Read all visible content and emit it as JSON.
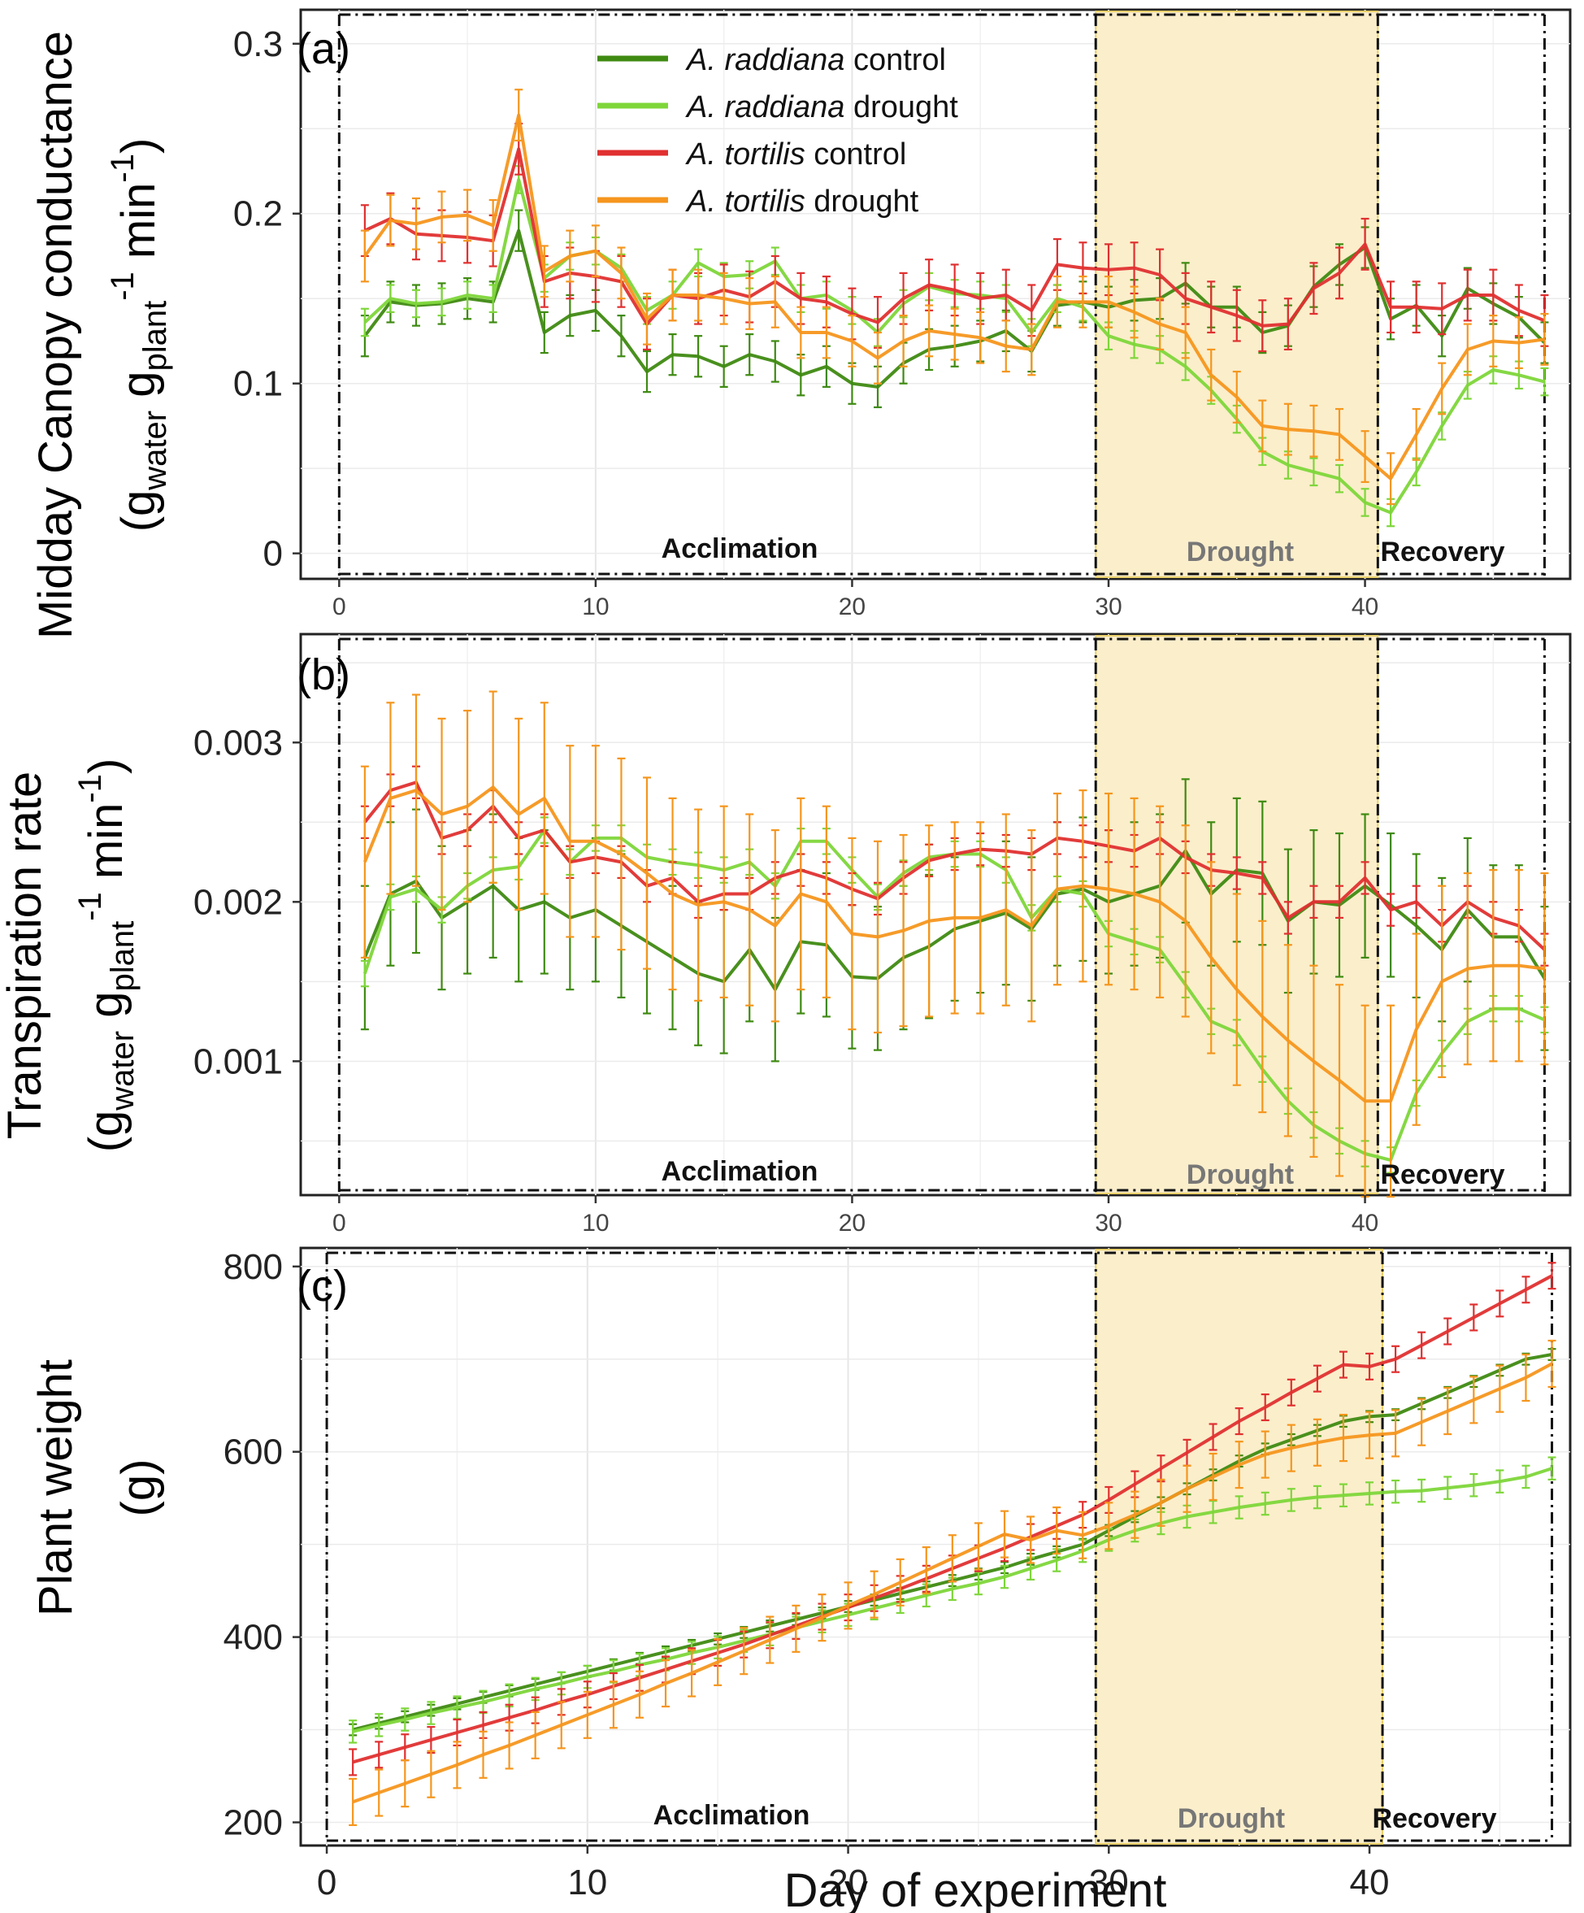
{
  "figure": {
    "x_axis_label": "Day of experiment",
    "phase_labels": {
      "acclimation": "Acclimation",
      "drought": "Drought",
      "recovery": "Recovery"
    },
    "legend": [
      {
        "key": "rad_c",
        "species": "A. raddiana",
        "treatment": "control",
        "color": "#3f8a12"
      },
      {
        "key": "rad_d",
        "species": "A. raddiana",
        "treatment": "drought",
        "color": "#7ed63a"
      },
      {
        "key": "tor_c",
        "species": "A. tortilis",
        "treatment": "control",
        "color": "#e03030"
      },
      {
        "key": "tor_d",
        "species": "A. tortilis",
        "treatment": "drought",
        "color": "#f5961e"
      }
    ],
    "phases": {
      "drought_start": 29.5,
      "drought_end": 40.5,
      "end": 47
    },
    "drought_band_color": "#fbeecb"
  },
  "chart_data": [
    {
      "panel": "(a)",
      "type": "line",
      "ylabel_main": "Midday Canopy conductance",
      "ylabel_units": "(g_water g_plant^-1 min^-1)",
      "ylim": [
        -0.015,
        0.32
      ],
      "xlim": [
        -1.5,
        48
      ],
      "xticks": [
        0,
        10,
        20,
        30,
        40
      ],
      "yticks": [
        0,
        0.1,
        0.2,
        0.3
      ],
      "ytick_labels": [
        "0",
        "0.1",
        "0.2",
        "0.3"
      ],
      "x": [
        1,
        2,
        3,
        4,
        5,
        6,
        7,
        8,
        9,
        10,
        11,
        12,
        13,
        14,
        15,
        16,
        17,
        18,
        19,
        20,
        21,
        22,
        23,
        24,
        25,
        26,
        27,
        28,
        29,
        30,
        31,
        32,
        33,
        34,
        35,
        36,
        37,
        38,
        39,
        40,
        41,
        42,
        43,
        44,
        45,
        46,
        47
      ],
      "series": [
        {
          "key": "rad_c",
          "name": "A. raddiana control",
          "values": [
            0.128,
            0.148,
            0.146,
            0.147,
            0.15,
            0.148,
            0.19,
            0.13,
            0.14,
            0.143,
            0.128,
            0.107,
            0.117,
            0.116,
            0.11,
            0.117,
            0.113,
            0.105,
            0.11,
            0.1,
            0.098,
            0.112,
            0.12,
            0.122,
            0.125,
            0.131,
            0.119,
            0.146,
            0.148,
            0.145,
            0.149,
            0.15,
            0.159,
            0.145,
            0.145,
            0.13,
            0.134,
            0.157,
            0.17,
            0.18,
            0.138,
            0.146,
            0.128,
            0.156,
            0.147,
            0.139,
            0.124
          ],
          "err": 0.012
        },
        {
          "key": "rad_d",
          "name": "A. raddiana drought",
          "values": [
            0.136,
            0.15,
            0.147,
            0.148,
            0.152,
            0.15,
            0.22,
            0.162,
            0.175,
            0.178,
            0.168,
            0.143,
            0.152,
            0.171,
            0.163,
            0.164,
            0.172,
            0.15,
            0.152,
            0.143,
            0.13,
            0.147,
            0.157,
            0.153,
            0.152,
            0.15,
            0.13,
            0.15,
            0.145,
            0.128,
            0.123,
            0.12,
            0.11,
            0.096,
            0.079,
            0.06,
            0.052,
            0.048,
            0.044,
            0.03,
            0.024,
            0.048,
            0.075,
            0.099,
            0.108,
            0.105,
            0.101
          ],
          "err": 0.008
        },
        {
          "key": "tor_c",
          "name": "A. tortilis control",
          "values": [
            0.19,
            0.197,
            0.188,
            0.187,
            0.186,
            0.184,
            0.238,
            0.16,
            0.165,
            0.163,
            0.16,
            0.135,
            0.152,
            0.15,
            0.155,
            0.151,
            0.16,
            0.15,
            0.148,
            0.141,
            0.136,
            0.15,
            0.158,
            0.155,
            0.15,
            0.152,
            0.143,
            0.17,
            0.168,
            0.167,
            0.168,
            0.164,
            0.15,
            0.145,
            0.14,
            0.134,
            0.135,
            0.156,
            0.165,
            0.182,
            0.145,
            0.145,
            0.144,
            0.152,
            0.152,
            0.143,
            0.137
          ],
          "err": 0.015
        },
        {
          "key": "tor_d",
          "name": "A. tortilis drought",
          "values": [
            0.175,
            0.196,
            0.194,
            0.198,
            0.199,
            0.193,
            0.258,
            0.166,
            0.175,
            0.178,
            0.165,
            0.138,
            0.152,
            0.152,
            0.15,
            0.147,
            0.148,
            0.13,
            0.13,
            0.125,
            0.115,
            0.125,
            0.131,
            0.129,
            0.127,
            0.122,
            0.12,
            0.148,
            0.148,
            0.148,
            0.142,
            0.135,
            0.13,
            0.105,
            0.092,
            0.075,
            0.073,
            0.072,
            0.07,
            0.057,
            0.044,
            0.07,
            0.097,
            0.12,
            0.125,
            0.124,
            0.126
          ],
          "err": 0.015
        }
      ]
    },
    {
      "panel": "(b)",
      "type": "line",
      "ylabel_main": "Transpiration rate",
      "ylabel_units": "(g_water g_plant^-1 min^-1)",
      "ylim": [
        0.00016,
        0.00368
      ],
      "xlim": [
        -1.5,
        48
      ],
      "xticks": [
        0,
        10,
        20,
        30,
        40
      ],
      "yticks": [
        0.001,
        0.002,
        0.003
      ],
      "ytick_labels": [
        "0.001",
        "0.002",
        "0.003"
      ],
      "x": [
        1,
        2,
        3,
        4,
        5,
        6,
        7,
        8,
        9,
        10,
        11,
        12,
        13,
        14,
        15,
        16,
        17,
        18,
        19,
        20,
        21,
        22,
        23,
        24,
        25,
        26,
        27,
        28,
        29,
        30,
        31,
        32,
        33,
        34,
        35,
        36,
        37,
        38,
        39,
        40,
        41,
        42,
        43,
        44,
        45,
        46,
        47
      ],
      "series": [
        {
          "key": "rad_c",
          "name": "A. raddiana control",
          "values": [
            0.00165,
            0.00205,
            0.00213,
            0.0019,
            0.002,
            0.0021,
            0.00195,
            0.002,
            0.0019,
            0.00195,
            0.00185,
            0.00175,
            0.00165,
            0.00155,
            0.0015,
            0.0017,
            0.00145,
            0.00175,
            0.00173,
            0.00153,
            0.00152,
            0.00165,
            0.00172,
            0.00183,
            0.00188,
            0.00193,
            0.00183,
            0.00205,
            0.00208,
            0.002,
            0.00205,
            0.0021,
            0.00232,
            0.00205,
            0.0022,
            0.00218,
            0.00188,
            0.002,
            0.00198,
            0.0021,
            0.00198,
            0.00185,
            0.0017,
            0.00195,
            0.00178,
            0.00178,
            0.00152
          ],
          "err": 0.00045
        },
        {
          "key": "rad_d",
          "name": "A. raddiana drought",
          "values": [
            0.00155,
            0.00203,
            0.00208,
            0.00195,
            0.0021,
            0.0022,
            0.00222,
            0.00245,
            0.00225,
            0.0024,
            0.0024,
            0.00228,
            0.00225,
            0.00223,
            0.0022,
            0.00225,
            0.0021,
            0.00238,
            0.00238,
            0.0022,
            0.00203,
            0.00218,
            0.00228,
            0.0023,
            0.0023,
            0.0022,
            0.0019,
            0.00208,
            0.00205,
            0.0018,
            0.00175,
            0.0017,
            0.00148,
            0.00125,
            0.00118,
            0.00095,
            0.00075,
            0.0006,
            0.0005,
            0.00042,
            0.00038,
            0.0008,
            0.00105,
            0.00125,
            0.00133,
            0.00133,
            0.00126
          ],
          "err": 8e-05
        },
        {
          "key": "tor_c",
          "name": "A. tortilis control",
          "values": [
            0.0025,
            0.0027,
            0.00275,
            0.0024,
            0.00245,
            0.0026,
            0.0024,
            0.00245,
            0.00225,
            0.00228,
            0.00225,
            0.0021,
            0.00215,
            0.002,
            0.00205,
            0.00205,
            0.00215,
            0.0022,
            0.00215,
            0.00208,
            0.00202,
            0.00215,
            0.00226,
            0.0023,
            0.00233,
            0.00232,
            0.0023,
            0.0024,
            0.00238,
            0.00235,
            0.00232,
            0.0024,
            0.00228,
            0.0022,
            0.00218,
            0.00215,
            0.0019,
            0.002,
            0.002,
            0.00215,
            0.00195,
            0.002,
            0.00185,
            0.002,
            0.0019,
            0.00185,
            0.0017
          ],
          "err": 0.0001
        },
        {
          "key": "tor_d",
          "name": "A. tortilis drought",
          "values": [
            0.00225,
            0.00265,
            0.0027,
            0.00255,
            0.0026,
            0.00272,
            0.00255,
            0.00265,
            0.00238,
            0.00238,
            0.0023,
            0.00218,
            0.00205,
            0.00198,
            0.002,
            0.00195,
            0.00185,
            0.00205,
            0.002,
            0.0018,
            0.00178,
            0.00182,
            0.00188,
            0.0019,
            0.0019,
            0.00195,
            0.00185,
            0.00208,
            0.0021,
            0.00208,
            0.00205,
            0.002,
            0.00188,
            0.00165,
            0.00145,
            0.00128,
            0.00113,
            0.001,
            0.00088,
            0.00075,
            0.00075,
            0.0012,
            0.0015,
            0.00158,
            0.0016,
            0.0016,
            0.00158
          ],
          "err": 0.0006
        }
      ]
    },
    {
      "panel": "(c)",
      "type": "line",
      "ylabel_main": "Plant weight",
      "ylabel_units": "(g)",
      "ylim": [
        175,
        820
      ],
      "xlim": [
        -1.0,
        47.7
      ],
      "xticks": [
        0,
        10,
        20,
        30,
        40
      ],
      "yticks": [
        200,
        400,
        600,
        800
      ],
      "ytick_labels": [
        "200",
        "400",
        "600",
        "800"
      ],
      "x": [
        1,
        2,
        3,
        4,
        5,
        6,
        7,
        8,
        9,
        10,
        11,
        12,
        13,
        14,
        15,
        16,
        17,
        18,
        19,
        20,
        21,
        22,
        23,
        24,
        25,
        26,
        27,
        28,
        29,
        30,
        31,
        32,
        33,
        34,
        35,
        36,
        37,
        38,
        39,
        40,
        41,
        42,
        43,
        44,
        45,
        46,
        47
      ],
      "series": [
        {
          "key": "rad_c",
          "name": "A. raddiana control",
          "values": [
            300,
            307,
            314,
            321,
            328,
            335,
            342,
            349,
            356,
            363,
            370,
            377,
            384,
            391,
            398,
            405,
            412,
            419,
            426,
            433,
            440,
            447,
            454,
            461,
            468,
            475,
            484,
            492,
            500,
            515,
            530,
            545,
            560,
            575,
            590,
            603,
            613,
            623,
            633,
            638,
            640,
            652,
            664,
            676,
            688,
            700,
            705
          ],
          "err": 6
        },
        {
          "key": "rad_d",
          "name": "A. raddiana drought",
          "values": [
            298,
            305,
            311,
            318,
            324,
            330,
            337,
            344,
            350,
            357,
            363,
            370,
            376,
            383,
            389,
            396,
            403,
            410,
            417,
            424,
            431,
            438,
            445,
            452,
            458,
            465,
            474,
            483,
            493,
            505,
            515,
            523,
            530,
            535,
            540,
            544,
            548,
            551,
            553,
            555,
            557,
            558,
            561,
            564,
            568,
            573,
            582
          ],
          "err": 12
        },
        {
          "key": "tor_c",
          "name": "A. tortilis control",
          "values": [
            265,
            273,
            281,
            289,
            297,
            305,
            313,
            321,
            330,
            338,
            347,
            356,
            365,
            374,
            383,
            392,
            402,
            412,
            422,
            432,
            442,
            452,
            463,
            474,
            485,
            496,
            508,
            520,
            532,
            548,
            565,
            582,
            599,
            616,
            633,
            648,
            664,
            679,
            694,
            692,
            700,
            715,
            730,
            745,
            760,
            775,
            790
          ],
          "err": 14
        },
        {
          "key": "tor_d",
          "name": "A. tortilis drought",
          "values": [
            222,
            232,
            242,
            252,
            262,
            273,
            283,
            294,
            305,
            316,
            327,
            338,
            350,
            361,
            373,
            385,
            397,
            409,
            421,
            434,
            446,
            459,
            472,
            485,
            498,
            511,
            505,
            515,
            510,
            520,
            532,
            545,
            560,
            573,
            586,
            597,
            604,
            610,
            615,
            618,
            620,
            632,
            644,
            656,
            668,
            680,
            695
          ],
          "err": 25
        }
      ]
    }
  ]
}
